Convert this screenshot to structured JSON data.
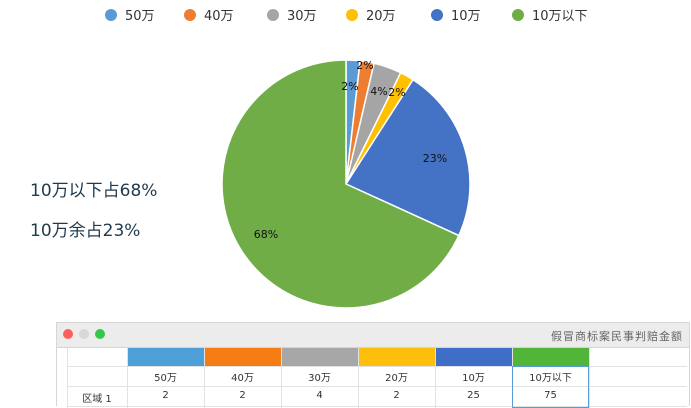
{
  "chart_data": {
    "type": "pie",
    "title": "",
    "categories": [
      "50万",
      "40万",
      "30万",
      "20万",
      "10万",
      "10万以下"
    ],
    "values": [
      2,
      2,
      4,
      2,
      25,
      75
    ],
    "percent_labels": [
      "2%",
      "2%",
      "4%",
      "2%",
      "23%",
      "68%"
    ],
    "legend_position": "top",
    "colors": [
      "#5b9bd5",
      "#ed7d31",
      "#a5a5a5",
      "#ffc000",
      "#4472c4",
      "#70ad47"
    ]
  },
  "notes": [
    "10万以下占68%",
    "10万余占23%"
  ],
  "sheet": {
    "title": "假冒商标案民事判赔金额",
    "row_label": "区域 1",
    "headers": [
      "50万",
      "40万",
      "30万",
      "20万",
      "10万",
      "10万以下"
    ],
    "values": [
      "2",
      "2",
      "4",
      "2",
      "25",
      "75"
    ]
  }
}
